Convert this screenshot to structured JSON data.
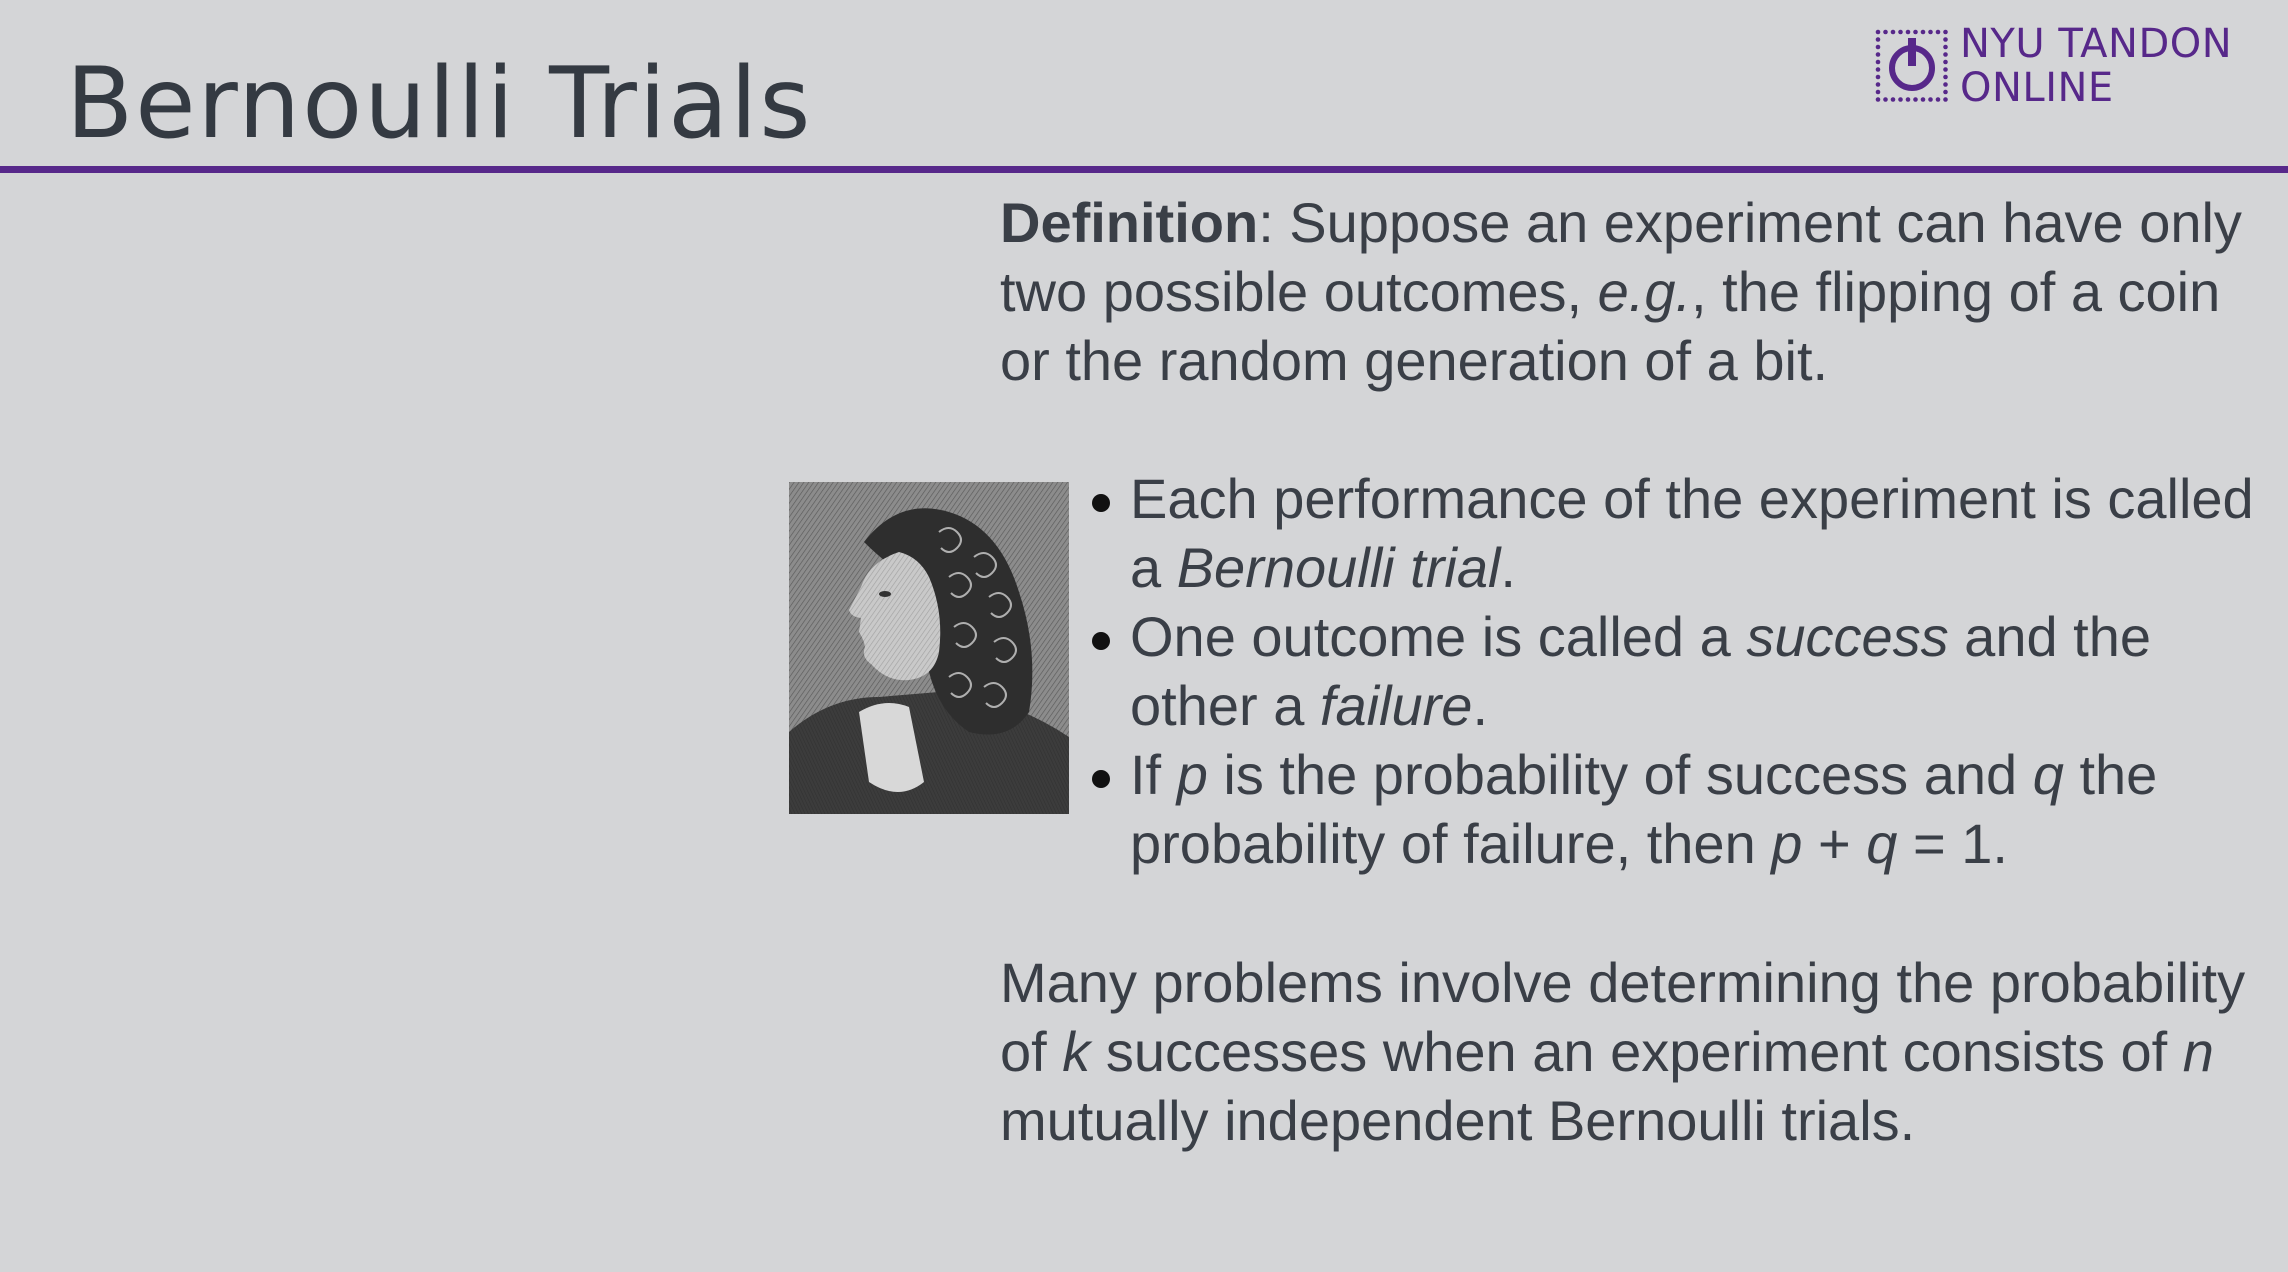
{
  "slide": {
    "title": "Bernoulli Trials"
  },
  "logo": {
    "line1": "NYU TANDON",
    "line2": "ONLINE",
    "color": "#57288a"
  },
  "definition": {
    "term": "Definition",
    "text_a": ": Suppose an experiment can have only two possible outcomes, ",
    "eg": "e.g.",
    "text_b": ", the flipping of a coin or the random generation of a bit."
  },
  "portrait": {
    "icon": "engraved-portrait-image"
  },
  "bullets": [
    {
      "a": "Each performance of the experiment is called a ",
      "em": "Bernoulli trial",
      "b": "."
    },
    {
      "a": "One outcome is called a ",
      "em": "success",
      "b": " and the other a ",
      "em2": "failure",
      "c": "."
    },
    {
      "a": "If ",
      "p": "p",
      "b": " is the probability of success and ",
      "q": "q",
      "c": " the probability of failure, then ",
      "p2": "p",
      "d": " + ",
      "q2": "q",
      "e": " = 1."
    }
  ],
  "closing": {
    "a": "Many problems involve determining the probability of ",
    "k": "k",
    "b": " successes when an experiment consists of ",
    "n": "n",
    "c": " mutually independent Bernoulli trials."
  }
}
